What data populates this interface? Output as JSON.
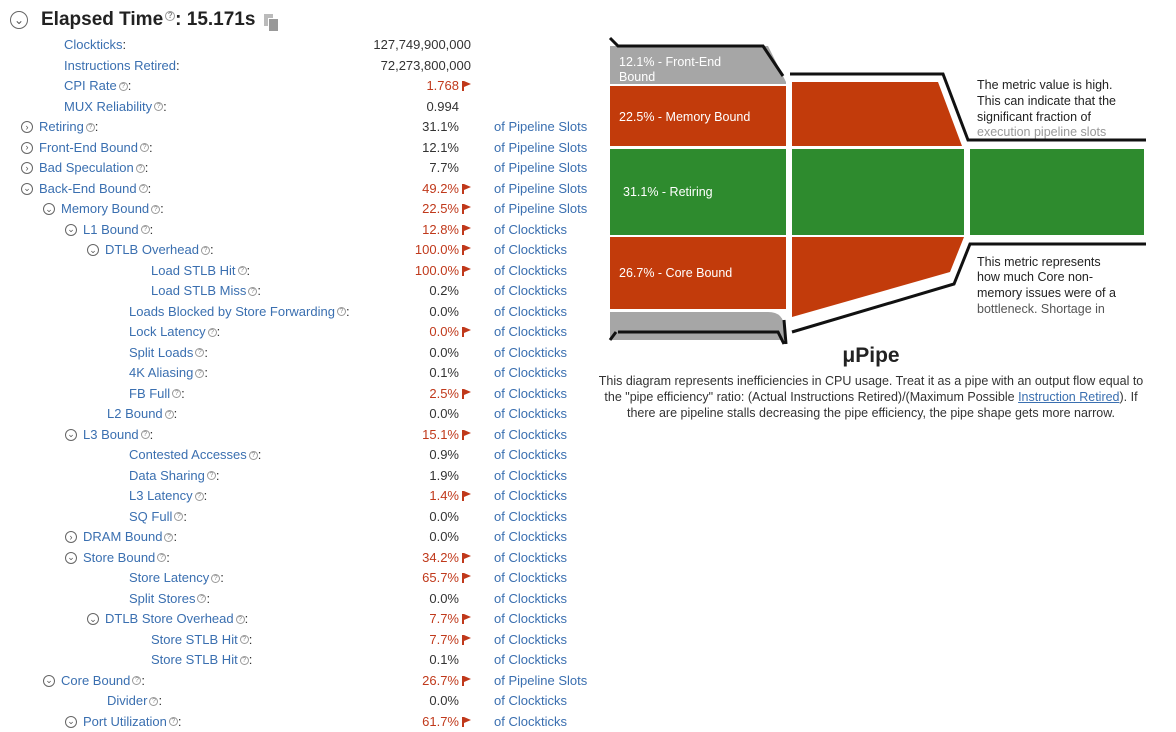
{
  "header": {
    "title": "Elapsed Time",
    "value": ": 15.171s"
  },
  "rows": [
    {
      "label": "Clockticks",
      "value": "127,749,900,000",
      "indent": 64,
      "toggle": "none",
      "unit": "",
      "hi": false,
      "help": false,
      "absolute": true
    },
    {
      "label": "Instructions Retired",
      "value": "72,273,800,000",
      "indent": 64,
      "toggle": "none",
      "unit": "",
      "hi": false,
      "help": false,
      "absolute": true
    },
    {
      "label": "CPI Rate",
      "value": "1.768",
      "indent": 64,
      "toggle": "none",
      "unit": "",
      "hi": true,
      "help": true
    },
    {
      "label": "MUX Reliability",
      "value": "0.994",
      "indent": 64,
      "toggle": "none",
      "unit": "",
      "hi": false,
      "help": true
    },
    {
      "label": "Retiring",
      "value": "31.1%",
      "indent": 42,
      "toggle": "collapsed",
      "unit": "of Pipeline Slots",
      "hi": false,
      "help": true
    },
    {
      "label": "Front-End Bound",
      "value": "12.1%",
      "indent": 42,
      "toggle": "collapsed",
      "unit": "of Pipeline Slots",
      "hi": false,
      "help": true
    },
    {
      "label": "Bad Speculation",
      "value": "7.7%",
      "indent": 42,
      "toggle": "collapsed",
      "unit": "of Pipeline Slots",
      "hi": false,
      "help": true
    },
    {
      "label": "Back-End Bound",
      "value": "49.2%",
      "indent": 42,
      "toggle": "expanded",
      "unit": "of Pipeline Slots",
      "hi": true,
      "help": true
    },
    {
      "label": "Memory Bound",
      "value": "22.5%",
      "indent": 64,
      "toggle": "expanded",
      "unit": "of Pipeline Slots",
      "hi": true,
      "help": true
    },
    {
      "label": "L1 Bound",
      "value": "12.8%",
      "indent": 86,
      "toggle": "expanded",
      "unit": "of Clockticks",
      "hi": true,
      "help": true
    },
    {
      "label": "DTLB Overhead",
      "value": "100.0%",
      "indent": 108,
      "toggle": "expanded",
      "unit": "of Clockticks",
      "hi": true,
      "help": true
    },
    {
      "label": "Load STLB Hit",
      "value": "100.0%",
      "indent": 151,
      "toggle": "none",
      "unit": "of Clockticks",
      "hi": true,
      "help": true
    },
    {
      "label": "Load STLB Miss",
      "value": "0.2%",
      "indent": 151,
      "toggle": "none",
      "unit": "of Clockticks",
      "hi": false,
      "help": true
    },
    {
      "label": "Loads Blocked by Store Forwarding",
      "value": "0.0%",
      "indent": 129,
      "toggle": "none",
      "unit": "of Clockticks",
      "hi": false,
      "help": true
    },
    {
      "label": "Lock Latency",
      "value": "0.0%",
      "indent": 129,
      "toggle": "none",
      "unit": "of Clockticks",
      "hi": true,
      "help": true
    },
    {
      "label": "Split Loads",
      "value": "0.0%",
      "indent": 129,
      "toggle": "none",
      "unit": "of Clockticks",
      "hi": false,
      "help": true
    },
    {
      "label": "4K Aliasing",
      "value": "0.1%",
      "indent": 129,
      "toggle": "none",
      "unit": "of Clockticks",
      "hi": false,
      "help": true
    },
    {
      "label": "FB Full",
      "value": "2.5%",
      "indent": 129,
      "toggle": "none",
      "unit": "of Clockticks",
      "hi": true,
      "help": true
    },
    {
      "label": "L2 Bound",
      "value": "0.0%",
      "indent": 107,
      "toggle": "none",
      "unit": "of Clockticks",
      "hi": false,
      "help": true
    },
    {
      "label": "L3 Bound",
      "value": "15.1%",
      "indent": 86,
      "toggle": "expanded",
      "unit": "of Clockticks",
      "hi": true,
      "help": true
    },
    {
      "label": "Contested Accesses",
      "value": "0.9%",
      "indent": 129,
      "toggle": "none",
      "unit": "of Clockticks",
      "hi": false,
      "help": true
    },
    {
      "label": "Data Sharing",
      "value": "1.9%",
      "indent": 129,
      "toggle": "none",
      "unit": "of Clockticks",
      "hi": false,
      "help": true
    },
    {
      "label": "L3 Latency",
      "value": "1.4%",
      "indent": 129,
      "toggle": "none",
      "unit": "of Clockticks",
      "hi": true,
      "help": true
    },
    {
      "label": "SQ Full",
      "value": "0.0%",
      "indent": 129,
      "toggle": "none",
      "unit": "of Clockticks",
      "hi": false,
      "help": true
    },
    {
      "label": "DRAM Bound",
      "value": "0.0%",
      "indent": 86,
      "toggle": "collapsed",
      "unit": "of Clockticks",
      "hi": false,
      "help": true
    },
    {
      "label": "Store Bound",
      "value": "34.2%",
      "indent": 86,
      "toggle": "expanded",
      "unit": "of Clockticks",
      "hi": true,
      "help": true
    },
    {
      "label": "Store Latency",
      "value": "65.7%",
      "indent": 129,
      "toggle": "none",
      "unit": "of Clockticks",
      "hi": true,
      "help": true
    },
    {
      "label": "Split Stores",
      "value": "0.0%",
      "indent": 129,
      "toggle": "none",
      "unit": "of Clockticks",
      "hi": false,
      "help": true
    },
    {
      "label": "DTLB Store Overhead",
      "value": "7.7%",
      "indent": 108,
      "toggle": "expanded",
      "unit": "of Clockticks",
      "hi": true,
      "help": true
    },
    {
      "label": "Store STLB Hit",
      "value": "7.7%",
      "indent": 151,
      "toggle": "none",
      "unit": "of Clockticks",
      "hi": true,
      "help": true
    },
    {
      "label": "Store STLB Hit",
      "value": "0.1%",
      "indent": 151,
      "toggle": "none",
      "unit": "of Clockticks",
      "hi": false,
      "help": true
    },
    {
      "label": "Core Bound",
      "value": "26.7%",
      "indent": 64,
      "toggle": "expanded",
      "unit": "of Pipeline Slots",
      "hi": true,
      "help": true
    },
    {
      "label": "Divider",
      "value": "0.0%",
      "indent": 107,
      "toggle": "none",
      "unit": "of Clockticks",
      "hi": false,
      "help": true
    },
    {
      "label": "Port Utilization",
      "value": "61.7%",
      "indent": 86,
      "toggle": "expanded",
      "unit": "of Clockticks",
      "hi": true,
      "help": true
    }
  ],
  "pipe": {
    "front_end_line1": "12.1% - Front-End",
    "front_end_line2": "Bound",
    "memory": "22.5% - Memory Bound",
    "retiring": "31.1% - Retiring",
    "core": "26.7% - Core Bound",
    "note_high": [
      "The metric value is high.",
      "This can indicate that the",
      "significant fraction of",
      "execution pipeline slots"
    ],
    "note_core": [
      "This metric represents",
      "how much Core non-",
      "memory issues were of a",
      "bottleneck. Shortage in"
    ],
    "colors": {
      "frontend": "#a6a6a6",
      "bound": "#c23b0b",
      "retiring": "#2e8b2e",
      "outline": "#111111"
    }
  },
  "upipe": {
    "title": "μPipe",
    "desc_pre": "This diagram represents inefficiencies in CPU usage. Treat it as a pipe with an output flow equal to the \"pipe efficiency\" ratio: (Actual Instructions Retired)/(Maximum Possible ",
    "desc_link": "Instruction Retired",
    "desc_post": "). If there are pipeline stalls decreasing the pipe efficiency, the pipe shape gets more narrow."
  }
}
